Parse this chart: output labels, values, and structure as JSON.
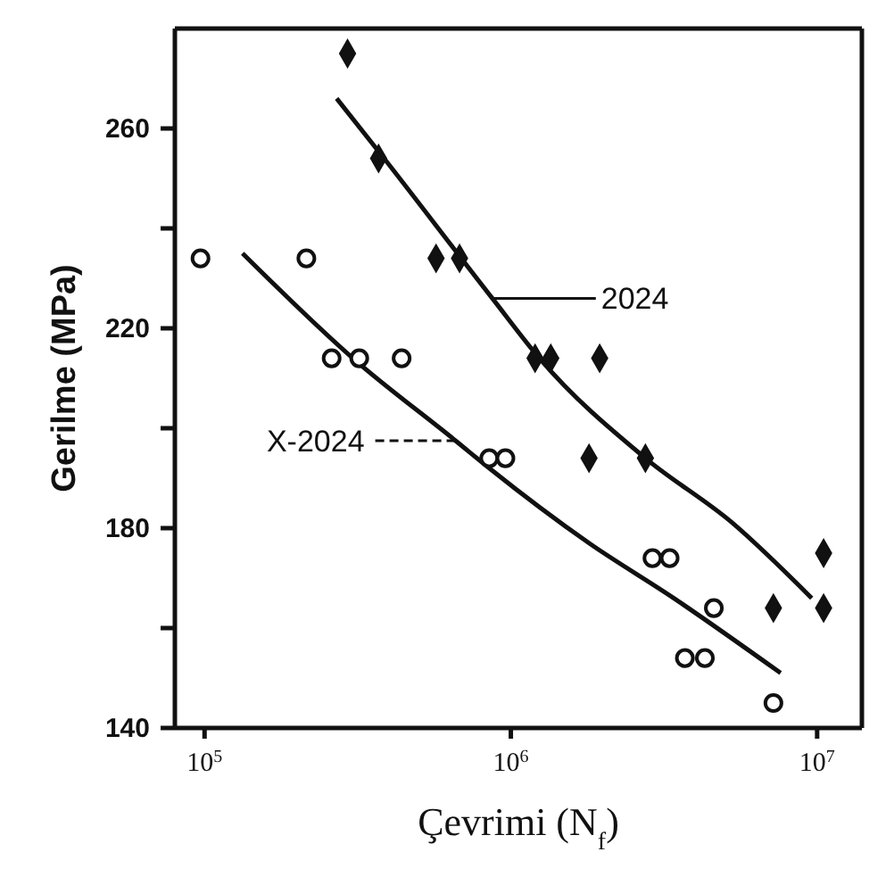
{
  "chart_data": {
    "type": "scatter",
    "xlabel": "Çevrimi (N$_{f}$)",
    "ylabel": "Gerilme (MPa)",
    "log": "x",
    "xlim": [
      80000,
      14000000
    ],
    "xticks": [
      {
        "value": 100000,
        "label": "10$^{5}$"
      },
      {
        "value": 1000000,
        "label": "10$^{6}$"
      },
      {
        "value": 10000000,
        "label": "10$^{7}$"
      }
    ],
    "ylim": [
      140,
      280
    ],
    "yticks": [
      140,
      {
        "value": 160,
        "label": null
      },
      180,
      {
        "value": 200,
        "label": null
      },
      220,
      {
        "value": 240,
        "label": null
      },
      260
    ],
    "series": [
      {
        "marker": "diamond",
        "color": "#111111",
        "x": [
          293000,
          370000,
          570000,
          680000,
          1200000,
          1350000,
          1950000,
          1800000,
          2750000,
          10500000,
          7200000,
          10500000
        ],
        "values": [
          275,
          254,
          234,
          234,
          214,
          214,
          214,
          194,
          194,
          175,
          164,
          164
        ]
      },
      {
        "marker": "circle",
        "color": "#111111",
        "x": [
          97000,
          215000,
          260000,
          320000,
          440000,
          850000,
          960000,
          2900000,
          3300000,
          4600000,
          3700000,
          4300000,
          7200000
        ],
        "values": [
          234,
          234,
          214,
          214,
          214,
          194,
          194,
          174,
          174,
          164,
          154,
          154,
          145
        ]
      },
      {
        "type": "line",
        "name": "2024",
        "marker": "none",
        "line_style": "solid",
        "color": "#111111",
        "x": [
          270000,
          380000,
          870000,
          1240000,
          2750000,
          5300000,
          9600000
        ],
        "values": [
          266,
          254.5,
          226,
          214,
          194,
          181,
          166
        ]
      },
      {
        "type": "line",
        "name": "X-2024",
        "marker": "none",
        "line_style": "solid",
        "color": "#111111",
        "x": [
          133000,
          305000,
          660000,
          850000,
          1800000,
          3400000,
          7600000
        ],
        "values": [
          235,
          214,
          197.5,
          192,
          177,
          166,
          151
        ]
      }
    ]
  }
}
